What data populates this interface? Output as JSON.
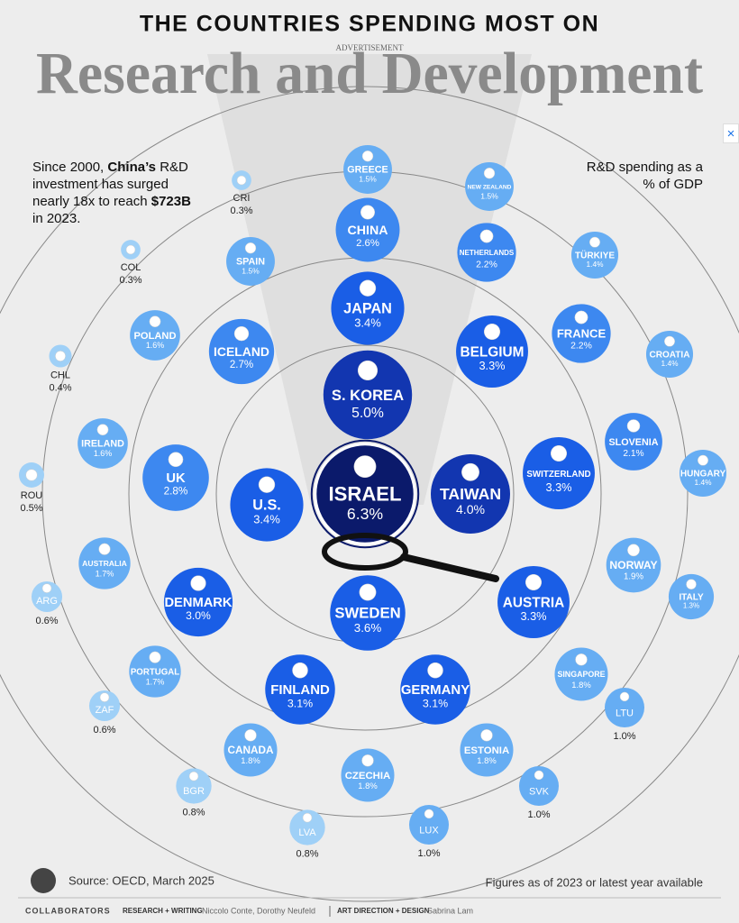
{
  "chart_data": {
    "type": "bubble",
    "title": "THE COUNTRIES SPENDING MOST ON",
    "subtitle": "Research and Development",
    "value_note": "R&D spending as a % of GDP",
    "categories": [
      "ISRAEL",
      "S. KOREA",
      "TAIWAN",
      "SWEDEN",
      "JAPAN",
      "U.S.",
      "BELGIUM",
      "SWITZERLAND",
      "AUSTRIA",
      "FINLAND",
      "GERMANY",
      "DENMARK",
      "UK",
      "ICELAND",
      "CHINA",
      "NETHERLANDS",
      "FRANCE",
      "SLOVENIA",
      "NORWAY",
      "SINGAPORE",
      "CANADA",
      "ESTONIA",
      "CZECHIA",
      "AUSTRALIA",
      "PORTUGAL",
      "POLAND",
      "IRELAND",
      "GREECE",
      "NEW ZEALAND",
      "SPAIN",
      "TÜRKIYE",
      "CROATIA",
      "HUNGARY",
      "ITALY",
      "LTU",
      "SVK",
      "LUX",
      "BGR",
      "LVA",
      "ARG",
      "ZAF",
      "ROU",
      "CHL",
      "CRI",
      "COL"
    ],
    "values": [
      6.3,
      5.0,
      4.0,
      3.6,
      3.4,
      3.4,
      3.3,
      3.3,
      3.3,
      3.1,
      3.1,
      3.0,
      2.8,
      2.7,
      2.6,
      2.2,
      2.2,
      2.1,
      1.9,
      1.8,
      1.8,
      1.8,
      1.8,
      1.7,
      1.7,
      1.6,
      1.6,
      1.5,
      1.5,
      1.5,
      1.4,
      1.4,
      1.4,
      1.3,
      1.0,
      1.0,
      1.0,
      0.8,
      0.8,
      0.6,
      0.6,
      0.5,
      0.4,
      0.3,
      0.3
    ],
    "value_labels": [
      "6.3%",
      "5.0%",
      "4.0%",
      "3.6%",
      "3.4%",
      "3.4%",
      "3.3%",
      "3.3%",
      "3.3%",
      "3.1%",
      "3.1%",
      "3.0%",
      "2.8%",
      "2.7%",
      "2.6%",
      "2.2%",
      "2.2%",
      "2.1%",
      "1.9%",
      "1.8%",
      "1.8%",
      "1.8%",
      "1.8%",
      "1.7%",
      "1.7%",
      "1.6%",
      "1.6%",
      "1.5%",
      "1.5%",
      "1.5%",
      "1.4%",
      "1.4%",
      "1.4%",
      "1.3%",
      "1.0%",
      "1.0%",
      "1.0%",
      "0.8%",
      "0.8%",
      "0.6%",
      "0.6%",
      "0.5%",
      "0.4%",
      "0.3%",
      "0.3%"
    ]
  },
  "advertisement": "ADVERTISEMENT",
  "note": [
    "Since 2000, ",
    "China’s",
    " R&D investment has surged nearly 18x to reach ",
    "$723B",
    " in 2023."
  ],
  "source": "Source: OECD, March 2025",
  "footnote": "Figures as of 2023 or latest year available",
  "credits": [
    "COLLABORATORS",
    "RESEARCH + WRITING",
    "Niccolo Conte, Dorothy Neufeld",
    "ART DIRECTION + DESIGN",
    "Sabrina Lam"
  ],
  "ad_close": "×"
}
